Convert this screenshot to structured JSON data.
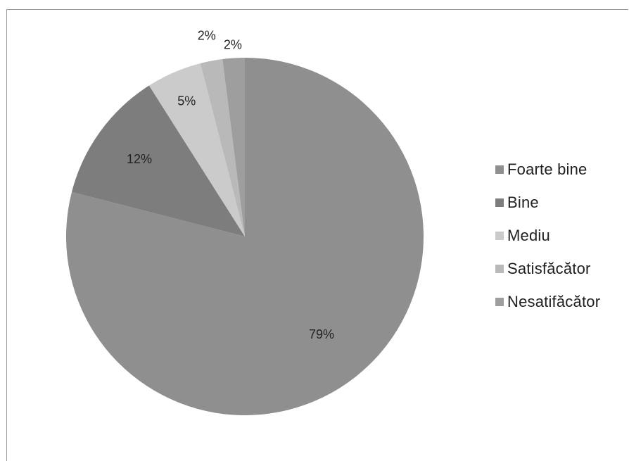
{
  "chart_data": {
    "type": "pie",
    "title": "",
    "categories": [
      "Foarte bine",
      "Bine",
      "Mediu",
      "Satisfăcător",
      "Nesatifăcător"
    ],
    "values": [
      79,
      12,
      5,
      2,
      2
    ],
    "labels": [
      "79%",
      "12%",
      "5%",
      "2%",
      "2%"
    ],
    "colors": [
      "#8f8f8f",
      "#7d7d7d",
      "#cbcbcb",
      "#b9b9b9",
      "#9e9e9e"
    ],
    "start_angle_deg": 0,
    "direction": "clockwise",
    "legend_position": "right"
  }
}
